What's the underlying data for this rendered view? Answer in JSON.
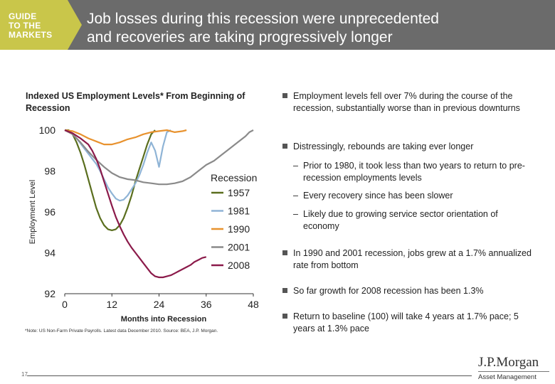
{
  "header": {
    "badge_lines": [
      "GUIDE",
      "TO THE",
      "MARKETS"
    ],
    "title_lines": [
      "Job losses during this recession were unprecedented",
      "and recoveries are taking progressively longer"
    ]
  },
  "chart_title": "Indexed US Employment Levels* From Beginning of Recession",
  "chart_data": {
    "type": "line",
    "xlabel": "Months into Recession",
    "ylabel": "Employment Level",
    "xlim": [
      0,
      48
    ],
    "ylim": [
      92,
      100
    ],
    "x_ticks": [
      0,
      12,
      24,
      36,
      48
    ],
    "y_ticks": [
      92,
      94,
      96,
      98,
      100
    ],
    "grid": false,
    "legend_title": "Recession",
    "legend_position": "right",
    "series": [
      {
        "name": "1957",
        "color": "#5a6e1e",
        "points": [
          [
            0,
            100
          ],
          [
            1,
            100
          ],
          [
            2,
            99.8
          ],
          [
            3,
            99.4
          ],
          [
            4,
            98.9
          ],
          [
            5,
            98.3
          ],
          [
            6,
            97.6
          ],
          [
            7,
            96.9
          ],
          [
            8,
            96.2
          ],
          [
            9,
            95.7
          ],
          [
            10,
            95.35
          ],
          [
            11,
            95.15
          ],
          [
            12,
            95.1
          ],
          [
            13,
            95.15
          ],
          [
            14,
            95.35
          ],
          [
            15,
            95.7
          ],
          [
            16,
            96.2
          ],
          [
            17,
            96.8
          ],
          [
            18,
            97.5
          ],
          [
            19,
            98.1
          ],
          [
            20,
            98.7
          ],
          [
            21,
            99.3
          ],
          [
            22,
            99.8
          ],
          [
            23,
            100
          ]
        ]
      },
      {
        "name": "1981",
        "color": "#8fb4d6",
        "points": [
          [
            0,
            100
          ],
          [
            1,
            99.95
          ],
          [
            2,
            99.8
          ],
          [
            3,
            99.6
          ],
          [
            4,
            99.35
          ],
          [
            5,
            99.1
          ],
          [
            6,
            98.85
          ],
          [
            7,
            98.6
          ],
          [
            8,
            98.35
          ],
          [
            9,
            98.0
          ],
          [
            10,
            97.6
          ],
          [
            11,
            97.2
          ],
          [
            12,
            96.9
          ],
          [
            13,
            96.65
          ],
          [
            14,
            96.55
          ],
          [
            15,
            96.6
          ],
          [
            16,
            96.8
          ],
          [
            17,
            97.1
          ],
          [
            18,
            97.4
          ],
          [
            19,
            97.8
          ],
          [
            20,
            98.3
          ],
          [
            21,
            98.9
          ],
          [
            22,
            99.4
          ],
          [
            23,
            99.0
          ],
          [
            24,
            98.2
          ],
          [
            25,
            99.2
          ],
          [
            26,
            99.9
          ],
          [
            27,
            100
          ]
        ]
      },
      {
        "name": "1990",
        "color": "#e8922e",
        "points": [
          [
            0,
            100
          ],
          [
            2,
            99.95
          ],
          [
            4,
            99.8
          ],
          [
            6,
            99.6
          ],
          [
            8,
            99.45
          ],
          [
            10,
            99.3
          ],
          [
            12,
            99.3
          ],
          [
            14,
            99.4
          ],
          [
            16,
            99.55
          ],
          [
            18,
            99.65
          ],
          [
            20,
            99.8
          ],
          [
            22,
            99.9
          ],
          [
            24,
            99.95
          ],
          [
            26,
            100
          ],
          [
            28,
            99.9
          ],
          [
            30,
            99.95
          ],
          [
            31,
            100
          ]
        ]
      },
      {
        "name": "2001",
        "color": "#8a8a8a",
        "points": [
          [
            0,
            100
          ],
          [
            2,
            99.8
          ],
          [
            4,
            99.4
          ],
          [
            6,
            98.95
          ],
          [
            8,
            98.55
          ],
          [
            10,
            98.2
          ],
          [
            12,
            97.9
          ],
          [
            14,
            97.7
          ],
          [
            16,
            97.6
          ],
          [
            18,
            97.55
          ],
          [
            20,
            97.45
          ],
          [
            22,
            97.4
          ],
          [
            24,
            97.35
          ],
          [
            26,
            97.35
          ],
          [
            28,
            97.4
          ],
          [
            30,
            97.5
          ],
          [
            32,
            97.7
          ],
          [
            34,
            98.0
          ],
          [
            36,
            98.3
          ],
          [
            38,
            98.5
          ],
          [
            40,
            98.8
          ],
          [
            42,
            99.1
          ],
          [
            44,
            99.4
          ],
          [
            46,
            99.7
          ],
          [
            47,
            99.9
          ],
          [
            48,
            100
          ]
        ]
      },
      {
        "name": "2008",
        "color": "#8b1a4a",
        "points": [
          [
            0,
            100
          ],
          [
            2,
            99.85
          ],
          [
            4,
            99.6
          ],
          [
            6,
            99.3
          ],
          [
            7,
            99.0
          ],
          [
            8,
            98.6
          ],
          [
            9,
            98.1
          ],
          [
            10,
            97.5
          ],
          [
            11,
            96.9
          ],
          [
            12,
            96.3
          ],
          [
            13,
            95.75
          ],
          [
            14,
            95.3
          ],
          [
            15,
            94.9
          ],
          [
            16,
            94.55
          ],
          [
            17,
            94.25
          ],
          [
            18,
            94.0
          ],
          [
            19,
            93.75
          ],
          [
            20,
            93.5
          ],
          [
            21,
            93.25
          ],
          [
            22,
            93.0
          ],
          [
            23,
            92.85
          ],
          [
            24,
            92.8
          ],
          [
            25,
            92.8
          ],
          [
            26,
            92.85
          ],
          [
            27,
            92.9
          ],
          [
            28,
            93.0
          ],
          [
            29,
            93.1
          ],
          [
            30,
            93.2
          ],
          [
            31,
            93.3
          ],
          [
            32,
            93.4
          ],
          [
            33,
            93.55
          ],
          [
            34,
            93.65
          ],
          [
            35,
            93.75
          ],
          [
            36,
            93.8
          ]
        ]
      }
    ]
  },
  "bullets": [
    {
      "text": "Employment levels fell over 7% during the course of the recession, substantially worse than in previous downturns",
      "subs": []
    },
    {
      "text": "Distressingly, rebounds are taking ever longer",
      "subs": [
        "Prior to 1980, it took less than two years to return to pre-recession employments levels",
        "Every recovery since has been slower",
        "Likely due to growing service sector orientation of economy"
      ]
    },
    {
      "text": "In 1990 and 2001 recession, jobs grew at a 1.7% annualized rate from bottom",
      "subs": []
    },
    {
      "text": "So far growth for 2008 recession has been 1.3%",
      "subs": []
    },
    {
      "text": "Return to baseline (100) will take 4 years at 1.7% pace; 5 years at 1.3% pace",
      "subs": []
    }
  ],
  "sub_marker": "–",
  "footnote": "*Note: US Non-Farm Private Payrolls. Latest data December 2010. Source: BEA, J.P. Morgan.",
  "page_number": "17",
  "logo": {
    "name": "J.P.Morgan",
    "sub": "Asset Management"
  }
}
